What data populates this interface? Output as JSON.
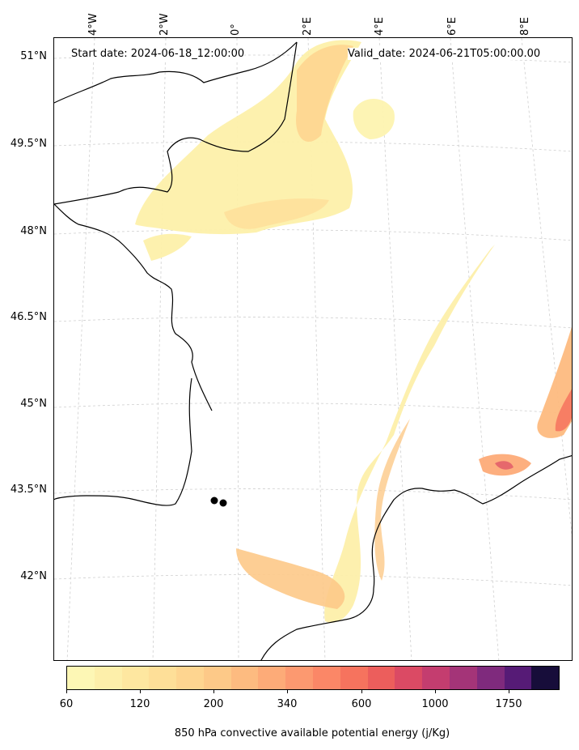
{
  "header": {
    "start_date": "Start date: 2024-06-18_12:00:00",
    "valid_date": "Valid_date: 2024-06-21T05:00:00.00"
  },
  "axes": {
    "latitude_labels": [
      "51°N",
      "49.5°N",
      "48°N",
      "46.5°N",
      "45°N",
      "43.5°N",
      "42°N"
    ],
    "longitude_labels": [
      "4°W",
      "2°W",
      "0°",
      "2°E",
      "4°E",
      "6°E",
      "8°E"
    ]
  },
  "colorbar": {
    "label": "850 hPa convective available potential energy (j/Kg)",
    "ticks": [
      "60",
      "120",
      "200",
      "340",
      "600",
      "1000",
      "1750"
    ],
    "colors": [
      "#fdf7b5",
      "#fdefaa",
      "#fee7a0",
      "#fedf98",
      "#fed590",
      "#fdc988",
      "#fdbb80",
      "#fdab78",
      "#fc9970",
      "#fb8767",
      "#f6735e",
      "#ec5e5c",
      "#db4a64",
      "#c43d6f",
      "#a43478",
      "#7f2a7d",
      "#561b76",
      "#170d3a"
    ],
    "cmap": "magma-like (light yellow to dark purple)"
  },
  "map": {
    "projection": "Lambert conformal",
    "gridlines": "dashed light gray",
    "markers": [
      "black dot",
      "black dot"
    ]
  }
}
